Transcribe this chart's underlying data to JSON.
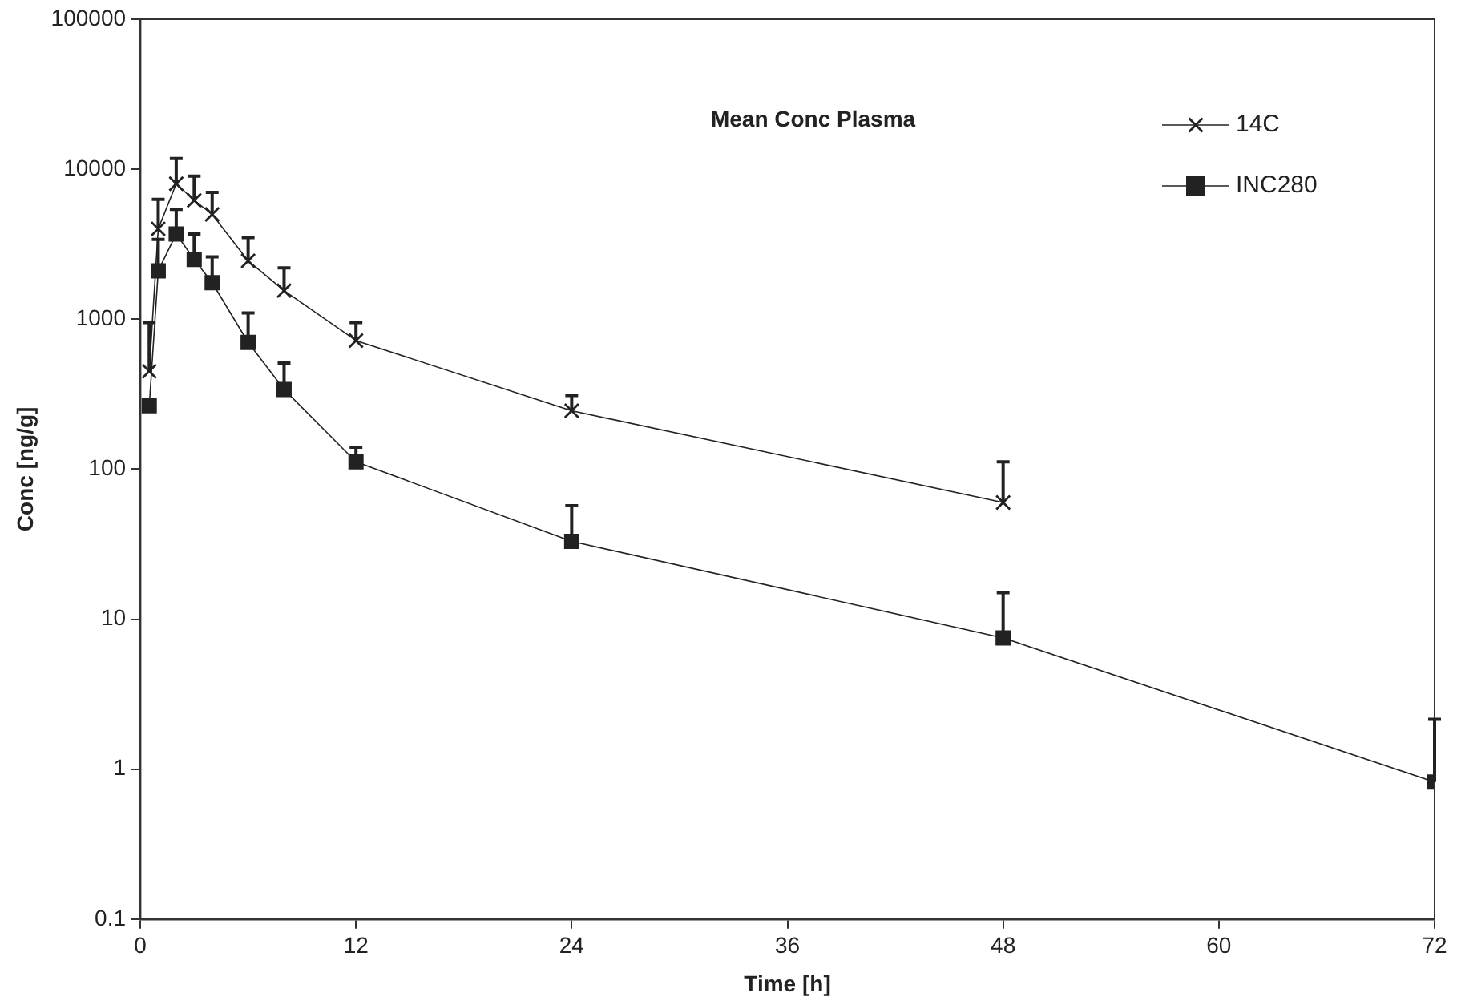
{
  "chart_data": {
    "type": "line",
    "title": "Mean Conc Plasma",
    "xlabel": "Time [h]",
    "ylabel": "Conc [ng/g]",
    "log": "y",
    "xlim": [
      0,
      72
    ],
    "xticks": [
      0,
      12,
      24,
      36,
      48,
      60,
      72
    ],
    "ylim": [
      0.1,
      100000
    ],
    "yticks": [
      0.1,
      1,
      10,
      100,
      1000,
      10000,
      100000
    ],
    "grid": false,
    "legend": "top right",
    "line_style": "solid",
    "series": [
      {
        "name": "14C",
        "color": "#222222",
        "marker": "cross",
        "x": [
          0.5,
          1,
          2,
          3,
          4,
          6,
          8,
          12,
          24,
          48
        ],
        "values": [
          450,
          4000,
          8000,
          6200,
          5000,
          2450,
          1550,
          720,
          245,
          60
        ],
        "errors": [
          [
            450,
            950
          ],
          [
            4000,
            6300
          ],
          [
            8000,
            11800
          ],
          [
            6200,
            9000
          ],
          [
            5000,
            7000
          ],
          [
            2450,
            3500
          ],
          [
            1550,
            2200
          ],
          [
            720,
            950
          ],
          [
            245,
            310
          ],
          [
            60,
            112
          ]
        ]
      },
      {
        "name": "INC280",
        "color": "#222222",
        "marker": "square",
        "x": [
          0.5,
          1,
          2,
          3,
          4,
          6,
          8,
          12,
          24,
          48,
          72
        ],
        "values": [
          265,
          2100,
          3700,
          2500,
          1750,
          700,
          340,
          112,
          33,
          7.5,
          0.82
        ],
        "errors": [
          null,
          [
            2100,
            3400
          ],
          [
            3700,
            5400
          ],
          [
            2500,
            3700
          ],
          [
            1750,
            2600
          ],
          [
            700,
            1100
          ],
          [
            340,
            510
          ],
          [
            112,
            140
          ],
          [
            33,
            57
          ],
          [
            7.5,
            15
          ],
          [
            0.82,
            2.15
          ]
        ]
      }
    ]
  }
}
